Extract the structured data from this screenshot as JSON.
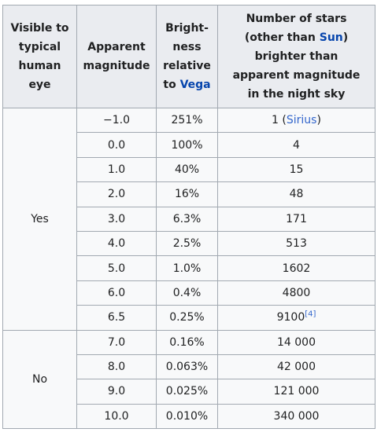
{
  "headers": {
    "visible": [
      "Visible to",
      "typical",
      "human",
      "eye"
    ],
    "apparent": [
      "Apparent",
      "magnitude"
    ],
    "brightness": [
      "Bright-",
      "ness",
      "relative"
    ],
    "brightness_to": "to ",
    "brightness_link": "Vega",
    "stars_line1_pre": "Number of stars",
    "stars_line2_pre": "(other than ",
    "stars_line2_link": "Sun",
    "stars_line2_post": ")",
    "stars_rest": [
      "brighter than",
      "apparent magnitude",
      "in the night sky"
    ]
  },
  "groups": [
    "Yes",
    "No"
  ],
  "rows": [
    {
      "mag": "−1.0",
      "bright": "251%",
      "stars": "1 (",
      "stars_link": "Sirius",
      "stars_post": ")"
    },
    {
      "mag": "0.0",
      "bright": "100%",
      "stars": "4"
    },
    {
      "mag": "1.0",
      "bright": "40%",
      "stars": "15"
    },
    {
      "mag": "2.0",
      "bright": "16%",
      "stars": "48"
    },
    {
      "mag": "3.0",
      "bright": "6.3%",
      "stars": "171"
    },
    {
      "mag": "4.0",
      "bright": "2.5%",
      "stars": "513"
    },
    {
      "mag": "5.0",
      "bright": "1.0%",
      "stars": "1602"
    },
    {
      "mag": "6.0",
      "bright": "0.4%",
      "stars": "4800"
    },
    {
      "mag": "6.5",
      "bright": "0.25%",
      "stars": "9100",
      "stars_ref": "[4]"
    },
    {
      "mag": "7.0",
      "bright": "0.16%",
      "stars": "14 000"
    },
    {
      "mag": "8.0",
      "bright": "0.063%",
      "stars": "42 000"
    },
    {
      "mag": "9.0",
      "bright": "0.025%",
      "stars": "121 000"
    },
    {
      "mag": "10.0",
      "bright": "0.010%",
      "stars": "340 000"
    }
  ],
  "colors": {
    "link": "#3366cc",
    "header_bg": "#eaecf0",
    "cell_bg": "#f8f9fa",
    "border": "#a2a9b1"
  }
}
